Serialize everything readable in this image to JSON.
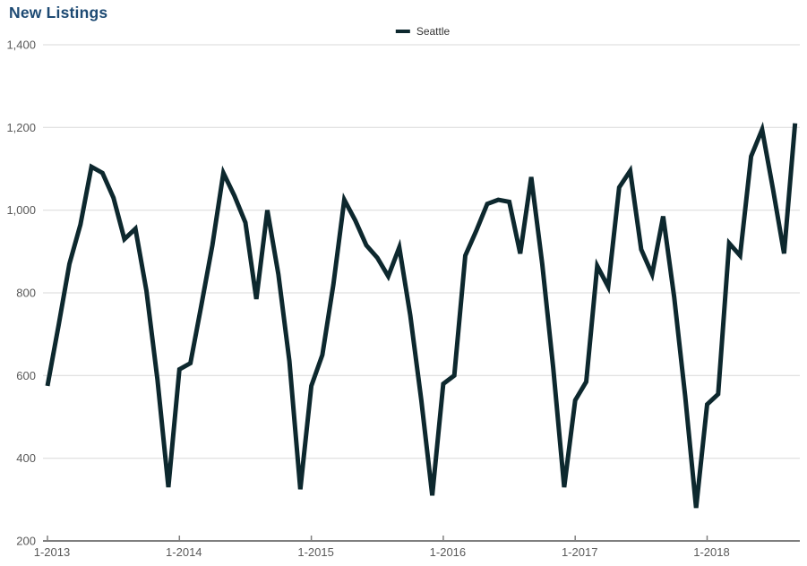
{
  "page": {
    "title": "New Listings"
  },
  "colors": {
    "title": "#1d4a73",
    "axis_labels": "#595959",
    "gridline": "#d9d9d9",
    "axis_line": "#7f7f7f",
    "background": "#ffffff",
    "series_seattle": "#0d282e"
  },
  "legend": {
    "items": [
      {
        "label": "Seattle",
        "swatch_color": "#0d282e"
      }
    ]
  },
  "chart_data": {
    "type": "line",
    "title": "New Listings",
    "x_unit": "month",
    "x_range": "Jan 2013 - Sep 2018",
    "x_tick_labels": [
      "1-2013",
      "1-2014",
      "1-2015",
      "1-2016",
      "1-2017",
      "1-2018"
    ],
    "x_tick_indices": [
      0,
      12,
      24,
      36,
      48,
      60
    ],
    "y_tick_labels": [
      "200",
      "400",
      "600",
      "800",
      "1,000",
      "1,200",
      "1,400"
    ],
    "y_tick_values": [
      200,
      400,
      600,
      800,
      1000,
      1200,
      1400
    ],
    "ylim": [
      200,
      1400
    ],
    "grid": "horizontal",
    "legend_position": "top-center",
    "series": [
      {
        "name": "Seattle",
        "color": "#0d282e",
        "values": [
          575,
          720,
          870,
          965,
          1105,
          1090,
          1030,
          930,
          955,
          805,
          590,
          330,
          615,
          630,
          770,
          915,
          1090,
          1035,
          970,
          785,
          1000,
          845,
          635,
          325,
          575,
          650,
          820,
          1025,
          975,
          915,
          885,
          840,
          910,
          745,
          540,
          310,
          580,
          600,
          890,
          950,
          1015,
          1025,
          1020,
          895,
          1080,
          870,
          620,
          330,
          540,
          585,
          865,
          815,
          1055,
          1095,
          905,
          845,
          985,
          790,
          550,
          280,
          530,
          555,
          920,
          890,
          1130,
          1195,
          1050,
          895,
          1210
        ]
      }
    ]
  }
}
